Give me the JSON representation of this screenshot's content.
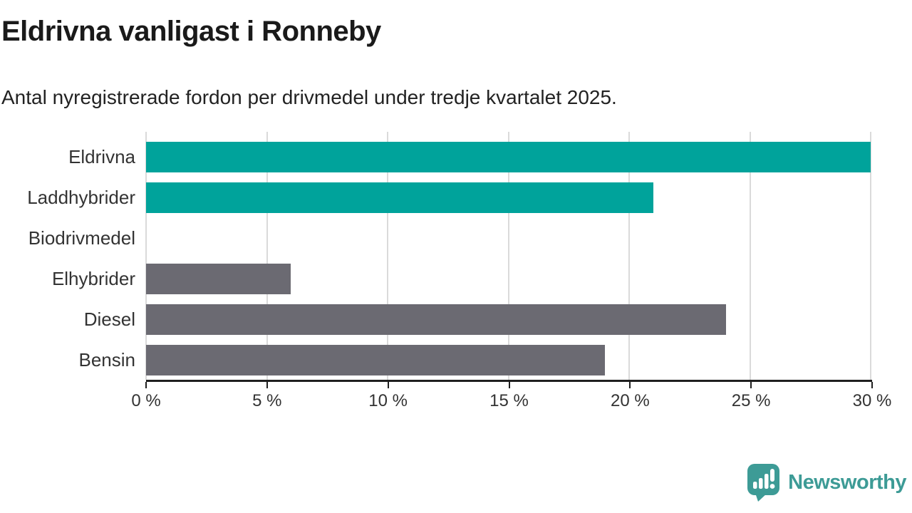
{
  "chart_data": {
    "type": "bar",
    "orientation": "horizontal",
    "title": "Eldrivna vanligast i Ronneby",
    "subtitle": "Antal nyregistrerade fordon per drivmedel under tredje kvartalet 2025.",
    "categories": [
      "Eldrivna",
      "Laddhybrider",
      "Biodrivmedel",
      "Elhybrider",
      "Diesel",
      "Bensin"
    ],
    "values": [
      30,
      21,
      0,
      6,
      24,
      19
    ],
    "value_unit": "%",
    "xlim": [
      0,
      30
    ],
    "x_ticks": [
      0,
      5,
      10,
      15,
      20,
      25,
      30
    ],
    "x_tick_labels": [
      "0 %",
      "5 %",
      "10 %",
      "15 %",
      "20 %",
      "25 %",
      "30 %"
    ],
    "bar_colors": [
      "#00a39b",
      "#00a39b",
      "#6b6a72",
      "#6b6a72",
      "#6b6a72",
      "#6b6a72"
    ],
    "highlight_color": "#00a39b",
    "default_bar_color": "#6b6a72",
    "grid": true,
    "legend": false
  },
  "footer": {
    "brand": "Newsworthy",
    "brand_color": "#3d9b96",
    "logo_icon": "speech-bubble-bar-chart-icon"
  }
}
